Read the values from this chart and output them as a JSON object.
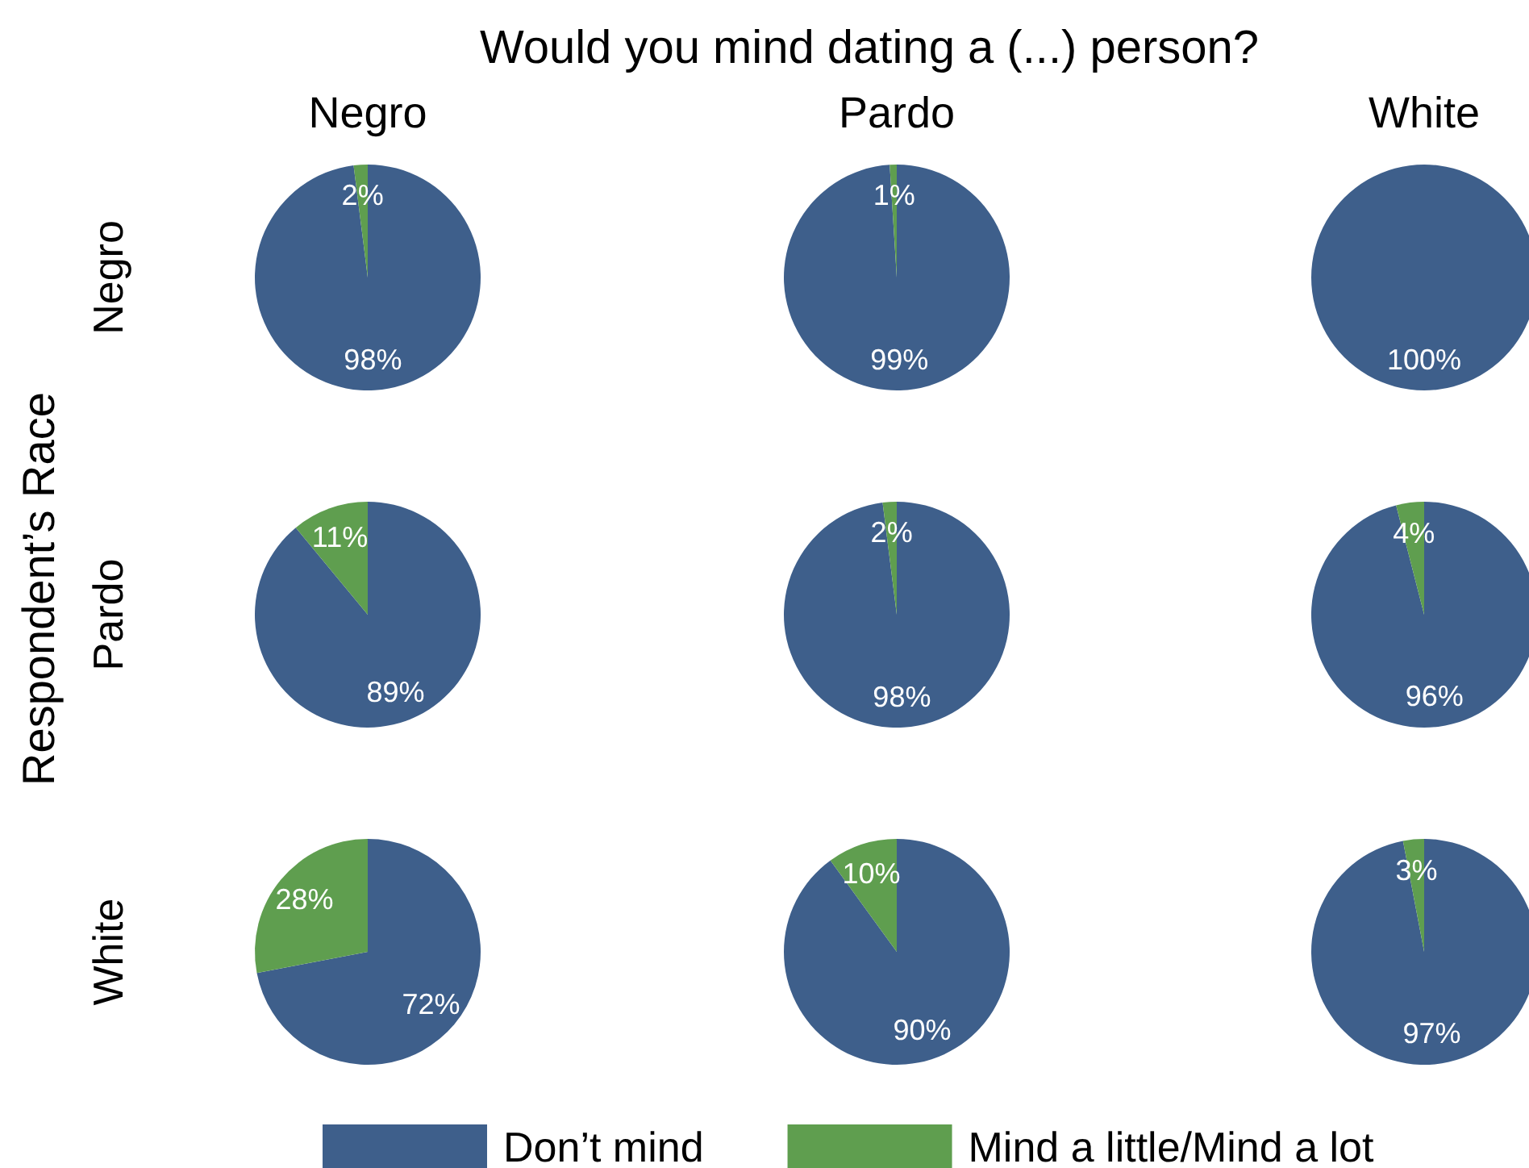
{
  "chart_data": [
    {
      "type": "other",
      "title": "Would you mind dating a (...) person?",
      "ylabel": "Respondent’s Race"
    },
    {
      "type": "pie",
      "title": "Negro",
      "ylabel": "Negro",
      "categories": [
        null,
        null
      ],
      "values": [
        98,
        2
      ],
      "colors": [
        "#3e5f8b",
        "#5f9e4f"
      ],
      "value_labels": [
        "98%",
        "2%"
      ]
    },
    {
      "type": "pie",
      "title": "Pardo",
      "categories": [
        null,
        null
      ],
      "values": [
        99,
        1
      ],
      "colors": [
        "#3e5f8b",
        "#5f9e4f"
      ],
      "value_labels": [
        "99%",
        "1%"
      ]
    },
    {
      "type": "pie",
      "title": "White",
      "categories": [
        null,
        null
      ],
      "values": [
        100,
        0
      ],
      "colors": [
        "#3e5f8b",
        "#5f9e4f"
      ],
      "value_labels": [
        "100%",
        null
      ]
    },
    {
      "type": "pie",
      "ylabel": "Pardo",
      "categories": [
        null,
        null
      ],
      "values": [
        89,
        11
      ],
      "colors": [
        "#3e5f8b",
        "#5f9e4f"
      ],
      "value_labels": [
        "89%",
        "11%"
      ]
    },
    {
      "type": "pie",
      "categories": [
        null,
        null
      ],
      "values": [
        98,
        2
      ],
      "colors": [
        "#3e5f8b",
        "#5f9e4f"
      ],
      "value_labels": [
        "98%",
        "2%"
      ]
    },
    {
      "type": "pie",
      "categories": [
        null,
        null
      ],
      "values": [
        96,
        4
      ],
      "colors": [
        "#3e5f8b",
        "#5f9e4f"
      ],
      "value_labels": [
        "96%",
        "4%"
      ]
    },
    {
      "type": "pie",
      "ylabel": "White",
      "categories": [
        null,
        null
      ],
      "values": [
        72,
        28
      ],
      "colors": [
        "#3e5f8b",
        "#5f9e4f"
      ],
      "value_labels": [
        "72%",
        "28%"
      ]
    },
    {
      "type": "pie",
      "categories": [
        null,
        null
      ],
      "values": [
        90,
        10
      ],
      "colors": [
        "#3e5f8b",
        "#5f9e4f"
      ],
      "value_labels": [
        "90%",
        "10%"
      ]
    },
    {
      "type": "pie",
      "categories": [
        "Don’t mind",
        "Mind a little/Mind a lot"
      ],
      "values": [
        97,
        3
      ],
      "colors": [
        "#3e5f8b",
        "#5f9e4f"
      ],
      "value_labels": [
        "97%",
        "3%"
      ],
      "legend": "bottom"
    }
  ]
}
